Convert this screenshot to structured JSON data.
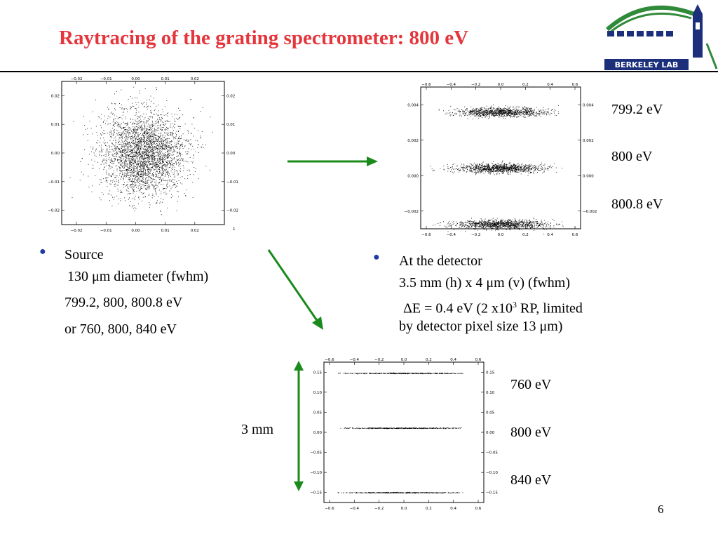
{
  "slide": {
    "title": "Raytracing of the grating spectrometer: 800 eV",
    "page_number": "6",
    "logo_text": "BERKELEY LAB",
    "colors": {
      "title": "#e4363c",
      "arrow": "#1a8a1a",
      "bullet": "#1f3aa6"
    }
  },
  "source_block": {
    "heading": "Source",
    "diameter": "130 μm diameter (fwhm)",
    "energies_1": "799.2, 800, 800.8 eV",
    "energies_2": "or 760, 800, 840 eV"
  },
  "detector_block": {
    "line1": "At the detector",
    "line2": "3.5 mm (h) x 4 μm (v) (fwhm)",
    "line3_pre": "ΔE = 0.4 eV (2 x10",
    "line3_sup": "3",
    "line3_post": " RP, limited",
    "line4": "by detector pixel size 13 μm)"
  },
  "labels": {
    "fine_top": "799.2  eV",
    "fine_mid": "800 eV",
    "fine_bot": "800.8 eV",
    "coarse_top": "760  eV",
    "coarse_mid": "800 eV",
    "coarse_bot": "840 eV",
    "scale": "3 mm"
  },
  "chart_data": [
    {
      "type": "scatter",
      "name_hint": "source",
      "xlim": [
        -0.025,
        0.03
      ],
      "ylim": [
        -0.025,
        0.025
      ],
      "xticks": [
        "−0.02",
        "−0.01",
        "0.00",
        "0.01",
        "0.02"
      ],
      "xticks_top": [
        "−0.02",
        "−0.01",
        "0.00",
        "0.01",
        "0.02"
      ],
      "yticks_left": [
        "0.02",
        "0.01",
        "0.00",
        "−0.01",
        "−0.02"
      ],
      "yticks_right": [
        "0.02",
        "0.01",
        "0.00",
        "−0.01",
        "−0.02"
      ],
      "corner_label": "1",
      "cluster": {
        "cx": 0.0,
        "cy": 0.0,
        "sx": 0.0085,
        "sy": 0.0085,
        "n": 3200
      }
    },
    {
      "type": "scatter",
      "name_hint": "detector-fine",
      "xlim": [
        -0.6,
        0.6
      ],
      "ylim": [
        -0.003,
        0.004
      ],
      "xticks": [
        "−0.6",
        "−0.4",
        "−0.2",
        "0.0",
        "0.2",
        "0.4",
        "0.6"
      ],
      "yticks_left": [
        "0.004",
        "0.002",
        "0.000",
        "−0.002"
      ],
      "yticks_right": [
        "0.004",
        "0.002",
        "0.000",
        "−0.002"
      ],
      "series": [
        {
          "name": "799.2 eV",
          "y": 0.00277
        },
        {
          "name": "800 eV",
          "y": 0.0
        },
        {
          "name": "800.8 eV",
          "y": -0.00277
        }
      ]
    },
    {
      "type": "scatter",
      "name_hint": "detector-coarse",
      "xlim": [
        -0.6,
        0.6
      ],
      "ylim": [
        -0.17,
        0.15
      ],
      "xticks": [
        "−0.6",
        "−0.4",
        "−0.2",
        "0.0",
        "0.2",
        "0.4",
        "0.6"
      ],
      "yticks_left": [
        "0.15",
        "0.10",
        "0.05",
        "0.00",
        "−0.05",
        "−0.10",
        "−0.15"
      ],
      "yticks_right": [
        "0.15",
        "0.10",
        "0.05",
        "0.00",
        "−0.05",
        "−0.10",
        "−0.15"
      ],
      "series": [
        {
          "name": "760 eV",
          "y": 0.125
        },
        {
          "name": "800 eV",
          "y": 0.0
        },
        {
          "name": "840 eV",
          "y": -0.147
        }
      ]
    }
  ]
}
